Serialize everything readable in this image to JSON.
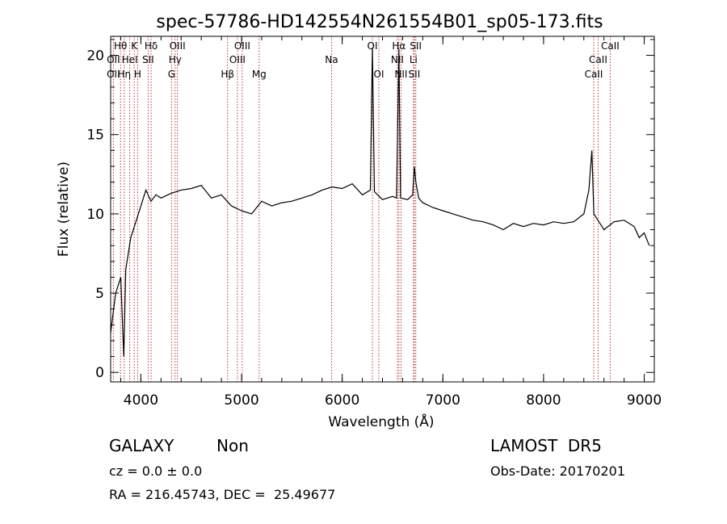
{
  "chart_data": {
    "type": "line",
    "title": "spec-57786-HD142554N261554B01_sp05-173.fits",
    "xlabel": "Wavelength (Å)",
    "ylabel": "Flux (relative)",
    "xlim": [
      3700,
      9100
    ],
    "ylim": [
      -0.6,
      21.2
    ],
    "xticks": [
      "4000",
      "5000",
      "6000",
      "7000",
      "8000",
      "9000"
    ],
    "yticks": [
      "0",
      "5",
      "10",
      "15",
      "20"
    ],
    "grid": false,
    "series": [
      {
        "x": [
          3700,
          3750,
          3800,
          3830,
          3850,
          3900,
          3950,
          4000,
          4050,
          4100,
          4150,
          4200,
          4300,
          4400,
          4500,
          4600,
          4700,
          4800,
          4900,
          5000,
          5100,
          5200,
          5300,
          5400,
          5500,
          5600,
          5700,
          5800,
          5900,
          6000,
          6100,
          6200,
          6280,
          6300,
          6320,
          6400,
          6500,
          6540,
          6563,
          6580,
          6650,
          6700,
          6716,
          6731,
          6760,
          6800,
          6900,
          7000,
          7100,
          7200,
          7300,
          7400,
          7500,
          7600,
          7700,
          7800,
          7900,
          8000,
          8100,
          8200,
          8300,
          8400,
          8450,
          8480,
          8500,
          8550,
          8600,
          8700,
          8800,
          8900,
          8950,
          9000,
          9050
        ],
        "y": [
          2.5,
          5.0,
          6.0,
          1.0,
          6.5,
          8.5,
          9.5,
          10.5,
          11.5,
          10.8,
          11.2,
          11.0,
          11.3,
          11.5,
          11.6,
          11.8,
          11.0,
          11.2,
          10.5,
          10.2,
          10.0,
          10.8,
          10.5,
          10.7,
          10.8,
          11.0,
          11.2,
          11.5,
          11.7,
          11.6,
          11.9,
          11.2,
          11.5,
          20.5,
          11.4,
          10.9,
          11.1,
          11.0,
          20.4,
          11.0,
          10.9,
          11.2,
          13.0,
          12.0,
          11.0,
          10.7,
          10.4,
          10.2,
          10.0,
          9.8,
          9.6,
          9.5,
          9.3,
          9.0,
          9.4,
          9.2,
          9.4,
          9.3,
          9.5,
          9.4,
          9.5,
          10.0,
          11.5,
          14.0,
          10.0,
          9.5,
          9.0,
          9.5,
          9.6,
          9.2,
          8.5,
          8.8,
          8.0
        ]
      }
    ],
    "lines": [
      {
        "name": "OII",
        "x": 3727,
        "row": 2
      },
      {
        "name": "OII",
        "x": 3727,
        "row": 3
      },
      {
        "name": "Hθ",
        "x": 3798,
        "row": 1
      },
      {
        "name": "Hη",
        "x": 3835,
        "row": 3
      },
      {
        "name": "HeI",
        "x": 3889,
        "row": 2
      },
      {
        "name": "K",
        "x": 3934,
        "row": 1
      },
      {
        "name": "H",
        "x": 3968,
        "row": 3
      },
      {
        "name": "Hδ",
        "x": 4102,
        "row": 1
      },
      {
        "name": "SII",
        "x": 4072,
        "row": 2
      },
      {
        "name": "OIII",
        "x": 4363,
        "row": 1
      },
      {
        "name": "Hγ",
        "x": 4340,
        "row": 2
      },
      {
        "name": "G",
        "x": 4305,
        "row": 3
      },
      {
        "name": "Hβ",
        "x": 4861,
        "row": 3
      },
      {
        "name": "OIII",
        "x": 5007,
        "row": 1
      },
      {
        "name": "OIII",
        "x": 4959,
        "row": 2
      },
      {
        "name": "Mg",
        "x": 5175,
        "row": 3
      },
      {
        "name": "Na",
        "x": 5894,
        "row": 2
      },
      {
        "name": "OI",
        "x": 6300,
        "row": 1
      },
      {
        "name": "OI",
        "x": 6364,
        "row": 3
      },
      {
        "name": "Hα",
        "x": 6563,
        "row": 1
      },
      {
        "name": "NII",
        "x": 6548,
        "row": 2
      },
      {
        "name": "NII",
        "x": 6584,
        "row": 3
      },
      {
        "name": "SII",
        "x": 6731,
        "row": 1
      },
      {
        "name": "Li",
        "x": 6708,
        "row": 2
      },
      {
        "name": "SII",
        "x": 6716,
        "row": 3
      },
      {
        "name": "CaII",
        "x": 8662,
        "row": 1
      },
      {
        "name": "CaII",
        "x": 8542,
        "row": 2
      },
      {
        "name": "CaII",
        "x": 8498,
        "row": 3
      }
    ],
    "line_marker_color": "#b22222"
  },
  "info": {
    "class": "GALAXY",
    "subclass": "Non",
    "survey": "LAMOST  DR5",
    "cz": "cz = 0.0 ± 0.0",
    "obs_date": "Obs-Date: 20170201",
    "radec": "RA = 216.45743, DEC =  25.49677"
  }
}
